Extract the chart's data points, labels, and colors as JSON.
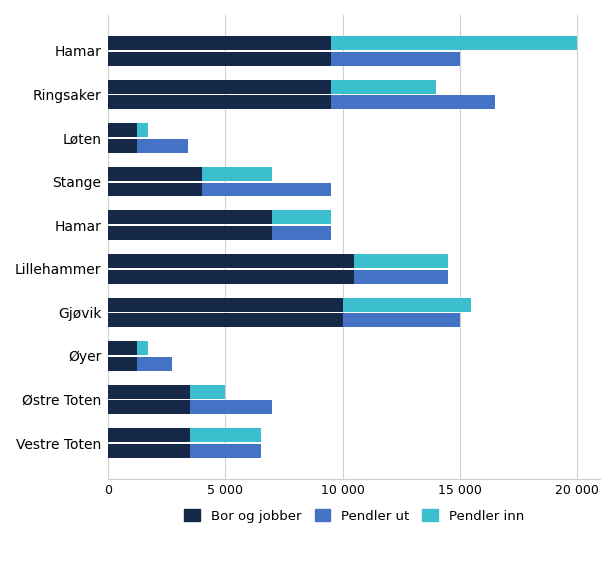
{
  "categories": [
    "Hamar",
    "Ringsaker",
    "Løten",
    "Stange",
    "Hamar",
    "Lillehammer",
    "Gjøvik",
    "Øyer",
    "Østre Toten",
    "Vestre Toten"
  ],
  "bor_og_jobber": [
    9500,
    9500,
    1200,
    4000,
    7000,
    10500,
    10000,
    1200,
    3500,
    3500
  ],
  "pendler_ut": [
    5500,
    7000,
    2200,
    5500,
    2500,
    4000,
    5000,
    1500,
    3500,
    3000
  ],
  "pendler_inn": [
    10500,
    4500,
    500,
    3000,
    2500,
    4000,
    5500,
    500,
    1500,
    3000
  ],
  "color_bor": "#152848",
  "color_ut": "#4472c4",
  "color_inn": "#3bbfce",
  "xlim": [
    0,
    21000
  ],
  "xticks": [
    0,
    5000,
    10000,
    15000,
    20000
  ],
  "xticklabels": [
    "0",
    "5 000",
    "10 000",
    "15 000",
    "20 000"
  ],
  "legend_labels": [
    "Bor og jobber",
    "Pendler ut",
    "Pendler inn"
  ],
  "background_color": "#ffffff",
  "bar_height": 0.32,
  "bar_gap": 0.04,
  "grid_color": "#d0d0d0"
}
